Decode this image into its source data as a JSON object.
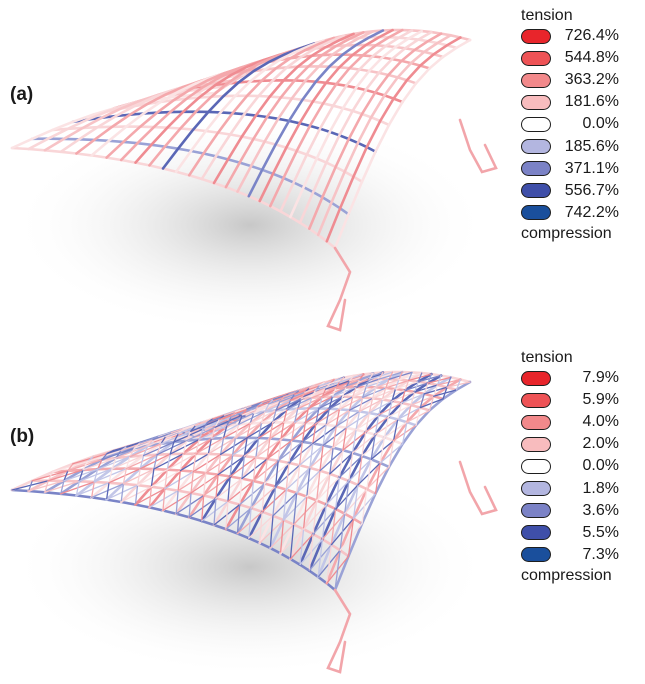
{
  "panels": [
    {
      "label": "(a)",
      "legend": {
        "top_label": "tension",
        "bottom_label": "compression",
        "entries": [
          {
            "value": "726.4%",
            "color": "#e8252b"
          },
          {
            "value": "544.8%",
            "color": "#ee5356"
          },
          {
            "value": "363.2%",
            "color": "#f2898b"
          },
          {
            "value": "181.6%",
            "color": "#f8bcbe"
          },
          {
            "value": "0.0%",
            "color": "#ffffff"
          },
          {
            "value": "185.6%",
            "color": "#b3b6e0"
          },
          {
            "value": "371.1%",
            "color": "#7b82c6"
          },
          {
            "value": "556.7%",
            "color": "#3f4fa9"
          },
          {
            "value": "742.2%",
            "color": "#1a4f9c"
          }
        ]
      }
    },
    {
      "label": "(b)",
      "legend": {
        "top_label": "tension",
        "bottom_label": "compression",
        "entries": [
          {
            "value": "7.9%",
            "color": "#e8252b"
          },
          {
            "value": "5.9%",
            "color": "#ee5356"
          },
          {
            "value": "4.0%",
            "color": "#f2898b"
          },
          {
            "value": "2.0%",
            "color": "#f8bcbe"
          },
          {
            "value": "0.0%",
            "color": "#ffffff"
          },
          {
            "value": "1.8%",
            "color": "#b3b6e0"
          },
          {
            "value": "3.6%",
            "color": "#7b82c6"
          },
          {
            "value": "5.5%",
            "color": "#3f4fa9"
          },
          {
            "value": "7.3%",
            "color": "#1a4f9c"
          }
        ]
      }
    }
  ]
}
